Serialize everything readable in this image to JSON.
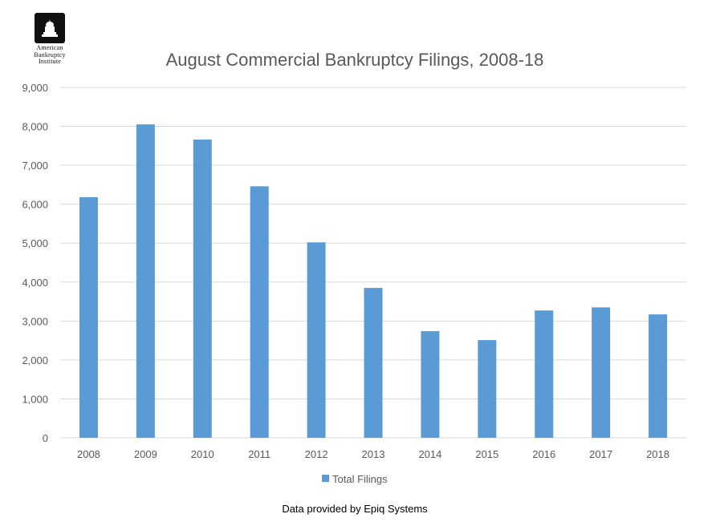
{
  "logo": {
    "line1": "American",
    "line2": "Bankruptcy",
    "line3": "Institute"
  },
  "footer": {
    "source": "Data provided by Epiq Systems"
  },
  "colors": {
    "bar": "#5b9bd5",
    "grid": "#d9d9d9",
    "axis_text": "#595959"
  },
  "chart_data": {
    "type": "bar",
    "title": "August Commercial Bankruptcy Filings, 2008-18",
    "xlabel": "",
    "ylabel": "",
    "categories": [
      "2008",
      "2009",
      "2010",
      "2011",
      "2012",
      "2013",
      "2014",
      "2015",
      "2016",
      "2017",
      "2018"
    ],
    "series": [
      {
        "name": "Total Filings",
        "values": [
          6180,
          8050,
          7660,
          6460,
          5020,
          3850,
          2740,
          2510,
          3270,
          3350,
          3170
        ]
      }
    ],
    "ylim": [
      0,
      9000
    ],
    "yticks": [
      "0",
      "1,000",
      "2,000",
      "3,000",
      "4,000",
      "5,000",
      "6,000",
      "7,000",
      "8,000",
      "9,000"
    ],
    "grid": true,
    "legend_position": "bottom"
  }
}
